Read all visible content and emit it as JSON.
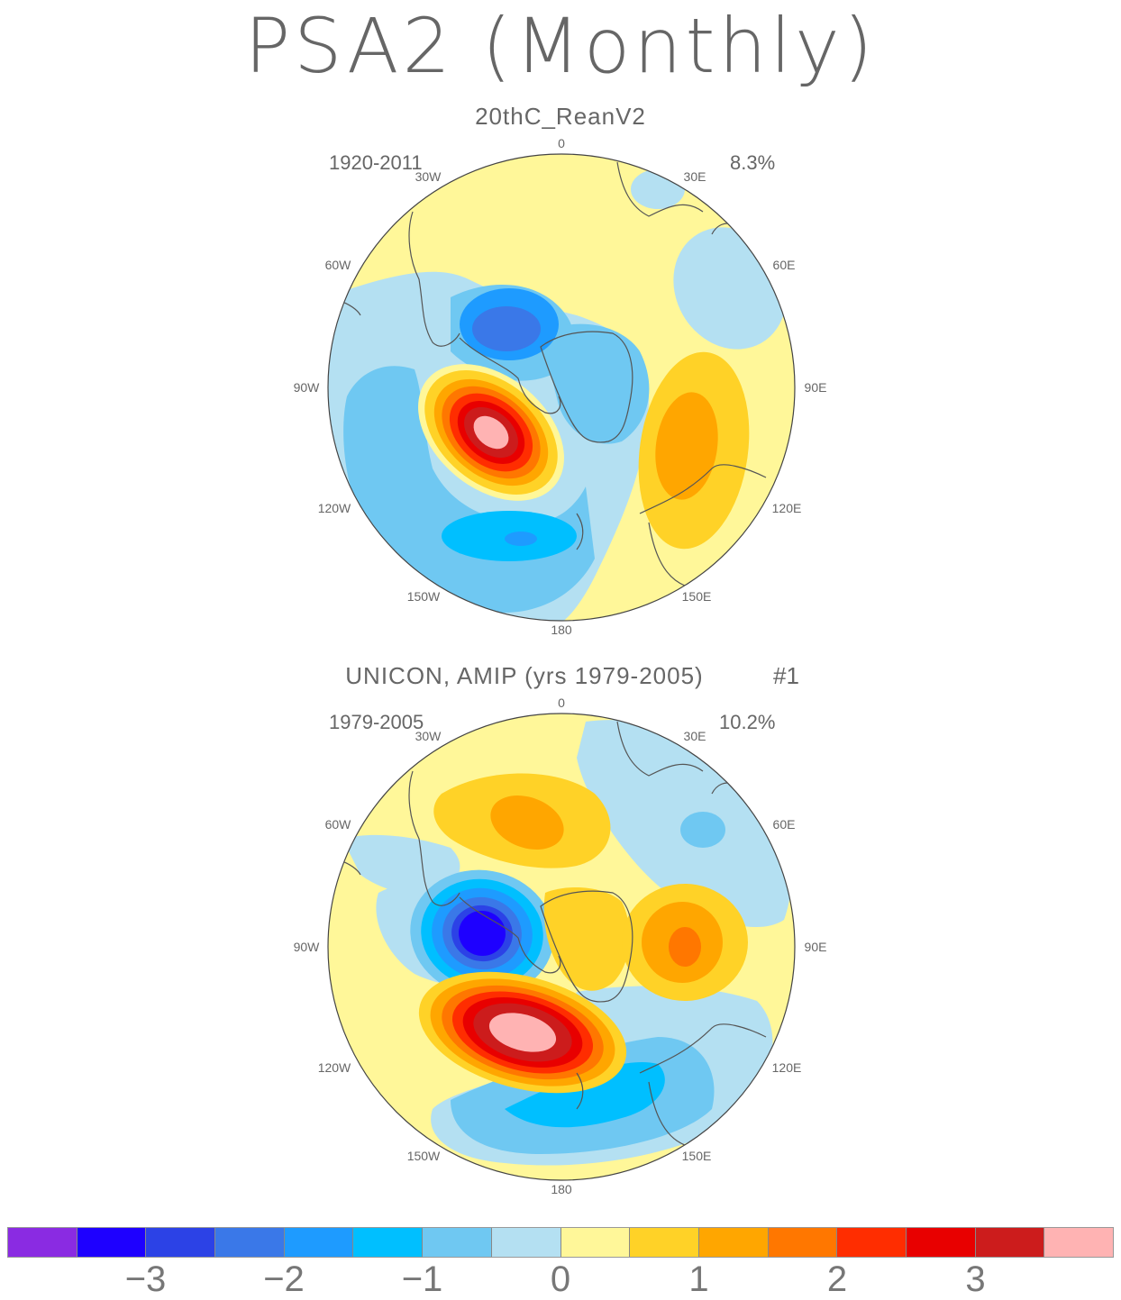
{
  "title": "PSA2 (Monthly)",
  "panels": [
    {
      "title": "20thC_ReanV2",
      "period": "1920-2011",
      "variance": "8.3%",
      "extra_label": ""
    },
    {
      "title": "UNICON, AMIP (yrs 1979-2005)",
      "period": "1979-2005",
      "variance": "10.2%",
      "extra_label": "#1"
    }
  ],
  "longitude_labels": {
    "top": "0",
    "bottom": "180",
    "w30": "30W",
    "e30": "30E",
    "w60": "60W",
    "e60": "60E",
    "w90": "90W",
    "e90": "90E",
    "w120": "120W",
    "e120": "120E",
    "w150": "150W",
    "e150": "150E"
  },
  "colorbar": {
    "colors": [
      "#8a2be2",
      "#1e00ff",
      "#2c42e6",
      "#3a78e8",
      "#1e9bff",
      "#00bfff",
      "#6fc8f2",
      "#b4e0f2",
      "#fff799",
      "#ffd227",
      "#ffa600",
      "#ff7700",
      "#ff2d00",
      "#e80000",
      "#cc1c1c",
      "#ffb3b3"
    ],
    "tick_labels": [
      "-3",
      "-2",
      "-1",
      "0",
      "1",
      "2",
      "3"
    ]
  },
  "map_data": {
    "type": "polar-stereographic-contour",
    "hemisphere": "south",
    "field": "PSA2 EOF pattern",
    "palette_note": "blue negative, yellow/red positive",
    "panel1_features": [
      {
        "kind": "negative-center",
        "sector": "60W-80W",
        "peak": -2.0
      },
      {
        "kind": "positive-center",
        "sector": "100W-110W",
        "peak": 3.5
      },
      {
        "kind": "negative-center",
        "sector": "150W-170W",
        "peak": -1.5
      },
      {
        "kind": "positive-center",
        "sector": "90E-110E",
        "peak": 1.5
      }
    ],
    "panel2_features": [
      {
        "kind": "negative-center",
        "sector": "70W-90W",
        "peak": -3.0
      },
      {
        "kind": "positive-center",
        "sector": "110W-130W",
        "peak": 3.5
      },
      {
        "kind": "positive-center",
        "sector": "90E",
        "peak": 2.0
      },
      {
        "kind": "positive-center",
        "sector": "30W-20E",
        "peak": 1.5
      },
      {
        "kind": "negative-center",
        "sector": "150W-160E",
        "peak": -1.2
      }
    ]
  }
}
